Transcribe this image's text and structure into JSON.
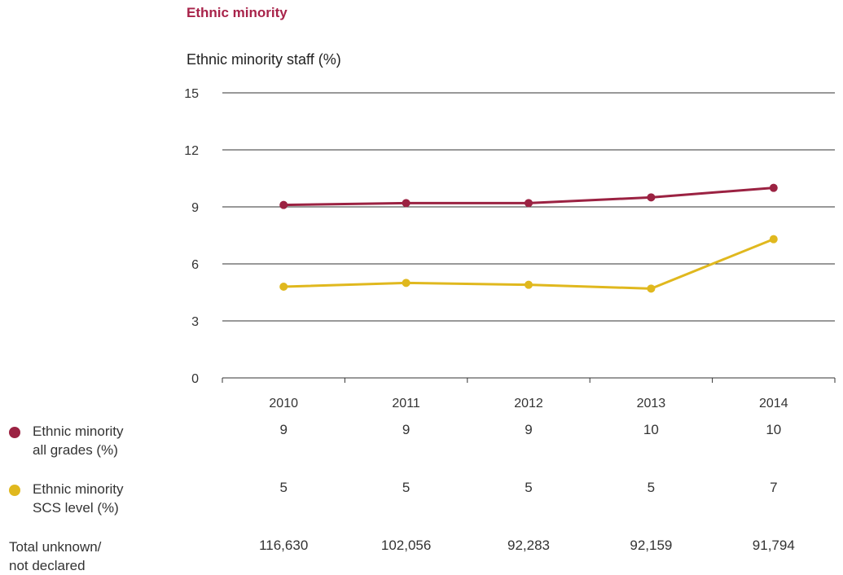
{
  "heading": "Ethnic minority",
  "chart_data": {
    "type": "line",
    "title": "Ethnic minority staff (%)",
    "categories": [
      "2010",
      "2011",
      "2012",
      "2013",
      "2014"
    ],
    "ylim": [
      0,
      15
    ],
    "yticks": [
      0,
      3,
      6,
      9,
      12,
      15
    ],
    "grid": true,
    "series": [
      {
        "name": "Ethnic minority all grades (%)",
        "color": "#9b2242",
        "values": [
          9.1,
          9.2,
          9.2,
          9.5,
          10.0
        ]
      },
      {
        "name": "Ethnic minority SCS level (%)",
        "color": "#e0b81e",
        "values": [
          4.8,
          5.0,
          4.9,
          4.7,
          7.3
        ]
      }
    ]
  },
  "table": {
    "rows": [
      {
        "label": "Ethnic minority\nall grades (%)",
        "marker_color": "#9b2242",
        "values": [
          "9",
          "9",
          "9",
          "10",
          "10"
        ]
      },
      {
        "label": "Ethnic minority\nSCS level (%)",
        "marker_color": "#e0b81e",
        "values": [
          "5",
          "5",
          "5",
          "5",
          "7"
        ]
      },
      {
        "label": "Total unknown/\nnot declared",
        "marker_color": null,
        "values": [
          "116,630",
          "102,056",
          "92,283",
          "92,159",
          "91,794"
        ]
      }
    ]
  }
}
